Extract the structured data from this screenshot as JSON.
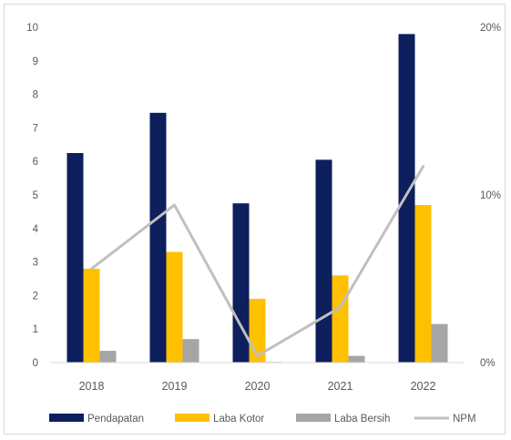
{
  "chart_data": {
    "type": "bar",
    "categories": [
      "2018",
      "2019",
      "2020",
      "2021",
      "2022"
    ],
    "series": [
      {
        "name": "Pendapatan",
        "kind": "bar",
        "axis": "left",
        "color": "#0d1f5c",
        "values": [
          6.25,
          7.45,
          4.75,
          6.05,
          9.8
        ]
      },
      {
        "name": "Laba Kotor",
        "kind": "bar",
        "axis": "left",
        "color": "#ffc000",
        "values": [
          2.8,
          3.3,
          1.9,
          2.6,
          4.7
        ]
      },
      {
        "name": "Laba Bersih",
        "kind": "bar",
        "axis": "left",
        "color": "#a5a5a5",
        "values": [
          0.35,
          0.7,
          0.02,
          0.2,
          1.15
        ]
      },
      {
        "name": "NPM",
        "kind": "line",
        "axis": "right",
        "color": "#c0c0c0",
        "values": [
          5.6,
          9.4,
          0.4,
          3.3,
          11.7
        ]
      }
    ],
    "left_axis": {
      "ylim": [
        0,
        10
      ],
      "ticks": [
        {
          "v": 0,
          "label": "0"
        },
        {
          "v": 1,
          "label": "1"
        },
        {
          "v": 2,
          "label": "2"
        },
        {
          "v": 3,
          "label": "3"
        },
        {
          "v": 4,
          "label": "4"
        },
        {
          "v": 5,
          "label": "5"
        },
        {
          "v": 6,
          "label": "6"
        },
        {
          "v": 7,
          "label": "7"
        },
        {
          "v": 8,
          "label": "8"
        },
        {
          "v": 9,
          "label": "9"
        },
        {
          "v": 10,
          "label": "10"
        }
      ]
    },
    "right_axis": {
      "ylim": [
        0,
        20
      ],
      "unit": "%",
      "ticks": [
        {
          "v": 0,
          "label": "0%"
        },
        {
          "v": 10,
          "label": "10%"
        },
        {
          "v": 20,
          "label": "20%"
        }
      ]
    },
    "grid": false,
    "legend_position": "bottom"
  }
}
